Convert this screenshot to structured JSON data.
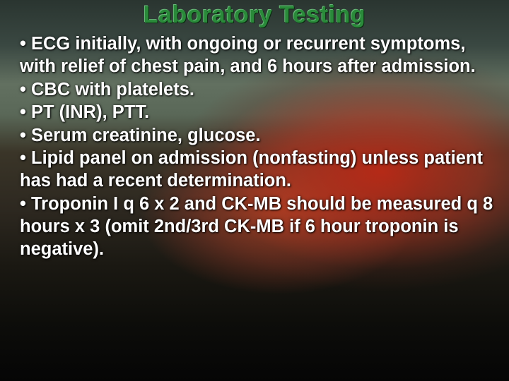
{
  "slide": {
    "title": "Laboratory Testing",
    "title_color": "#2a8a3a",
    "text_color": "#ffffff",
    "background_gradient_top": "#3a4a42",
    "background_cloud_color": "#c83a20",
    "background_bottom": "#050505",
    "font_family": "Arial",
    "title_fontsize_pt": 26,
    "body_fontsize_pt": 19,
    "bullets": [
      "• ECG initially, with ongoing or recurrent symptoms, with relief of chest pain, and 6 hours after admission.",
      "• CBC with platelets.",
      "• PT (INR), PTT.",
      "• Serum creatinine, glucose.",
      "• Lipid panel on admission (nonfasting) unless patient has had a recent determination.",
      "• Troponin I q 6 x 2 and CK-MB should be measured q 8 hours x 3 (omit 2nd/3rd CK-MB if 6 hour troponin is negative)."
    ]
  }
}
